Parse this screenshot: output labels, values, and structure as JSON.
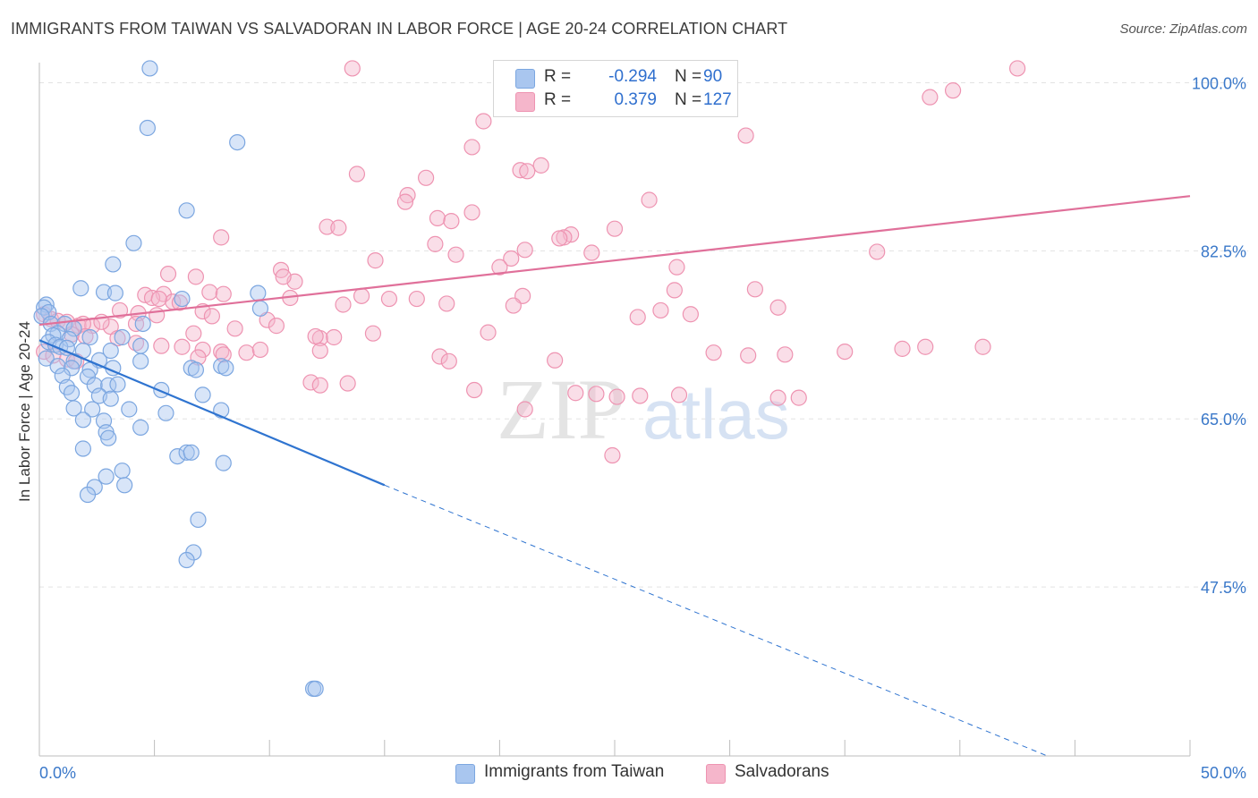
{
  "title": "IMMIGRANTS FROM TAIWAN VS SALVADORAN IN LABOR FORCE | AGE 20-24 CORRELATION CHART",
  "source": "Source: ZipAtlas.com",
  "watermark": {
    "zip": "ZIP",
    "atlas": "atlas"
  },
  "legend": {
    "rows": [
      {
        "r_label": "R =",
        "r_value": "-0.294",
        "n_label": "N =",
        "n_value": "90"
      },
      {
        "r_label": "R =",
        "r_value": "0.379",
        "n_label": "N =",
        "n_value": "127"
      }
    ]
  },
  "bottom_legend": [
    {
      "label": "Immigrants from Taiwan"
    },
    {
      "label": "Salvadorans"
    }
  ],
  "colors": {
    "taiwan_fill": "#a9c6ef",
    "taiwan_stroke": "#7ba6e0",
    "taiwan_line": "#2f74d0",
    "salvadoran_fill": "#f5b6cb",
    "salvadoran_stroke": "#ee93b1",
    "salvadoran_line": "#e0709a",
    "axis_label": "#3a78c9",
    "grid": "#e3e3e3"
  },
  "chart_data": {
    "type": "scatter",
    "title": "IMMIGRANTS FROM TAIWAN VS SALVADORAN IN LABOR FORCE | AGE 20-24 CORRELATION CHART",
    "xlabel": "",
    "ylabel": "In Labor Force | Age 20-24",
    "xlim": [
      0,
      50
    ],
    "ylim": [
      29.9,
      102.1
    ],
    "x_tick_labels": [
      "0.0%",
      "50.0%"
    ],
    "y_ticks": [
      100.0,
      82.5,
      65.0,
      47.5
    ],
    "y_tick_labels": [
      "100.0%",
      "82.5%",
      "65.0%",
      "47.5%"
    ],
    "grid": true,
    "legend_position": "top-center",
    "series": [
      {
        "name": "Immigrants from Taiwan",
        "color": "#a9c6ef",
        "r": -0.294,
        "n": 90,
        "trend": {
          "x0": 0.0,
          "y0": 73.2,
          "x1": 15.0,
          "y1": 58.1,
          "dash_x1": 43.8,
          "dash_y1": 29.9
        },
        "points": [
          [
            4.8,
            101.5
          ],
          [
            4.7,
            95.3
          ],
          [
            8.6,
            93.8
          ],
          [
            6.4,
            86.7
          ],
          [
            4.1,
            83.3
          ],
          [
            3.2,
            81.1
          ],
          [
            0.3,
            76.9
          ],
          [
            0.2,
            76.6
          ],
          [
            0.4,
            76.1
          ],
          [
            0.1,
            75.7
          ],
          [
            1.8,
            78.6
          ],
          [
            2.8,
            78.2
          ],
          [
            3.3,
            78.1
          ],
          [
            9.5,
            78.1
          ],
          [
            6.2,
            77.5
          ],
          [
            9.6,
            76.5
          ],
          [
            0.5,
            74.9
          ],
          [
            1.1,
            74.9
          ],
          [
            1.5,
            74.4
          ],
          [
            0.8,
            73.9
          ],
          [
            0.6,
            73.7
          ],
          [
            1.3,
            73.3
          ],
          [
            2.2,
            73.5
          ],
          [
            3.6,
            73.5
          ],
          [
            4.5,
            74.9
          ],
          [
            0.4,
            73.0
          ],
          [
            0.7,
            72.7
          ],
          [
            0.9,
            72.5
          ],
          [
            1.2,
            72.4
          ],
          [
            1.9,
            72.1
          ],
          [
            0.3,
            71.3
          ],
          [
            1.5,
            71.0
          ],
          [
            2.6,
            71.1
          ],
          [
            3.1,
            72.1
          ],
          [
            4.4,
            72.6
          ],
          [
            0.8,
            70.5
          ],
          [
            1.4,
            70.3
          ],
          [
            2.2,
            70.1
          ],
          [
            3.2,
            70.3
          ],
          [
            4.4,
            71.0
          ],
          [
            6.6,
            70.3
          ],
          [
            6.8,
            70.1
          ],
          [
            7.9,
            70.5
          ],
          [
            8.1,
            70.3
          ],
          [
            1.0,
            69.5
          ],
          [
            2.1,
            69.4
          ],
          [
            1.2,
            68.3
          ],
          [
            2.4,
            68.5
          ],
          [
            3.0,
            68.5
          ],
          [
            3.4,
            68.6
          ],
          [
            5.3,
            68.0
          ],
          [
            1.4,
            67.7
          ],
          [
            2.6,
            67.4
          ],
          [
            3.1,
            67.1
          ],
          [
            7.1,
            67.5
          ],
          [
            1.5,
            66.1
          ],
          [
            2.3,
            66.0
          ],
          [
            3.9,
            66.0
          ],
          [
            7.9,
            65.9
          ],
          [
            5.5,
            65.6
          ],
          [
            1.9,
            64.9
          ],
          [
            2.8,
            64.8
          ],
          [
            4.4,
            64.1
          ],
          [
            2.9,
            63.6
          ],
          [
            3.0,
            63.0
          ],
          [
            1.9,
            61.9
          ],
          [
            6.0,
            61.1
          ],
          [
            6.4,
            61.5
          ],
          [
            6.6,
            61.5
          ],
          [
            8.0,
            60.4
          ],
          [
            3.6,
            59.6
          ],
          [
            2.9,
            59.0
          ],
          [
            2.4,
            57.9
          ],
          [
            3.7,
            58.1
          ],
          [
            2.1,
            57.1
          ],
          [
            6.9,
            54.5
          ],
          [
            6.7,
            51.1
          ],
          [
            6.4,
            50.3
          ],
          [
            11.9,
            36.9
          ],
          [
            12.0,
            36.9
          ]
        ]
      },
      {
        "name": "Salvadorans",
        "color": "#f5b6cb",
        "r": 0.379,
        "n": 127,
        "trend": {
          "x0": 0.0,
          "y0": 74.8,
          "x1": 50.0,
          "y1": 88.2
        },
        "points": [
          [
            13.6,
            101.5
          ],
          [
            42.5,
            101.5
          ],
          [
            38.7,
            98.5
          ],
          [
            39.7,
            99.2
          ],
          [
            19.3,
            96.0
          ],
          [
            30.7,
            94.5
          ],
          [
            18.8,
            93.3
          ],
          [
            21.8,
            91.4
          ],
          [
            20.9,
            90.9
          ],
          [
            21.2,
            90.8
          ],
          [
            13.8,
            90.5
          ],
          [
            16.8,
            90.1
          ],
          [
            16.0,
            88.3
          ],
          [
            26.5,
            87.8
          ],
          [
            15.9,
            87.6
          ],
          [
            18.8,
            86.5
          ],
          [
            17.3,
            85.9
          ],
          [
            17.9,
            85.6
          ],
          [
            12.5,
            85.0
          ],
          [
            13.0,
            84.9
          ],
          [
            25.0,
            84.8
          ],
          [
            23.1,
            84.2
          ],
          [
            22.8,
            83.9
          ],
          [
            22.6,
            83.8
          ],
          [
            7.9,
            83.9
          ],
          [
            17.2,
            83.2
          ],
          [
            21.1,
            82.6
          ],
          [
            36.4,
            82.4
          ],
          [
            18.1,
            82.1
          ],
          [
            24.0,
            82.3
          ],
          [
            20.5,
            81.7
          ],
          [
            14.6,
            81.5
          ],
          [
            20.0,
            80.8
          ],
          [
            27.7,
            80.8
          ],
          [
            10.5,
            80.5
          ],
          [
            6.8,
            79.8
          ],
          [
            5.6,
            80.1
          ],
          [
            11.1,
            79.3
          ],
          [
            10.6,
            79.8
          ],
          [
            21.0,
            77.8
          ],
          [
            15.2,
            77.5
          ],
          [
            5.4,
            78.0
          ],
          [
            7.4,
            78.2
          ],
          [
            14.0,
            77.8
          ],
          [
            8.0,
            78.0
          ],
          [
            5.8,
            77.2
          ],
          [
            4.6,
            77.9
          ],
          [
            4.9,
            77.6
          ],
          [
            5.2,
            77.5
          ],
          [
            6.1,
            77.1
          ],
          [
            10.9,
            77.6
          ],
          [
            16.4,
            77.5
          ],
          [
            17.7,
            77.0
          ],
          [
            13.2,
            76.9
          ],
          [
            20.6,
            76.8
          ],
          [
            27.6,
            78.4
          ],
          [
            31.1,
            78.5
          ],
          [
            32.1,
            76.6
          ],
          [
            3.5,
            76.3
          ],
          [
            4.3,
            76.0
          ],
          [
            5.1,
            75.8
          ],
          [
            7.1,
            76.2
          ],
          [
            7.5,
            75.7
          ],
          [
            9.9,
            75.3
          ],
          [
            26.0,
            75.6
          ],
          [
            27.0,
            76.3
          ],
          [
            28.3,
            75.9
          ],
          [
            0.2,
            75.9
          ],
          [
            0.5,
            75.4
          ],
          [
            0.8,
            75.2
          ],
          [
            1.2,
            75.1
          ],
          [
            1.7,
            74.7
          ],
          [
            2.3,
            74.7
          ],
          [
            3.1,
            74.6
          ],
          [
            1.9,
            74.9
          ],
          [
            2.7,
            75.1
          ],
          [
            4.2,
            74.9
          ],
          [
            8.5,
            74.4
          ],
          [
            10.3,
            74.7
          ],
          [
            14.5,
            73.9
          ],
          [
            19.5,
            74.0
          ],
          [
            6.7,
            73.9
          ],
          [
            12.2,
            73.4
          ],
          [
            12.0,
            73.6
          ],
          [
            12.8,
            73.5
          ],
          [
            1.4,
            73.8
          ],
          [
            2.0,
            73.6
          ],
          [
            3.4,
            73.4
          ],
          [
            4.2,
            72.9
          ],
          [
            5.3,
            72.6
          ],
          [
            6.2,
            72.5
          ],
          [
            7.1,
            72.2
          ],
          [
            7.9,
            72.0
          ],
          [
            8.0,
            71.7
          ],
          [
            9.0,
            71.9
          ],
          [
            9.6,
            72.2
          ],
          [
            12.2,
            72.1
          ],
          [
            17.4,
            71.5
          ],
          [
            22.4,
            71.1
          ],
          [
            29.3,
            71.9
          ],
          [
            30.8,
            71.6
          ],
          [
            32.4,
            71.7
          ],
          [
            35.0,
            72.0
          ],
          [
            37.5,
            72.3
          ],
          [
            38.5,
            72.5
          ],
          [
            41.0,
            72.5
          ],
          [
            0.2,
            72.0
          ],
          [
            0.6,
            71.6
          ],
          [
            1.2,
            71.2
          ],
          [
            1.6,
            71.0
          ],
          [
            6.9,
            71.4
          ],
          [
            17.8,
            71.0
          ],
          [
            11.8,
            68.8
          ],
          [
            13.4,
            68.7
          ],
          [
            12.2,
            68.5
          ],
          [
            18.9,
            68.0
          ],
          [
            23.3,
            67.7
          ],
          [
            24.2,
            67.6
          ],
          [
            25.1,
            67.3
          ],
          [
            26.1,
            67.4
          ],
          [
            27.8,
            67.5
          ],
          [
            32.1,
            67.2
          ],
          [
            21.1,
            66.0
          ],
          [
            24.9,
            61.2
          ],
          [
            33.0,
            67.2
          ]
        ]
      }
    ]
  }
}
